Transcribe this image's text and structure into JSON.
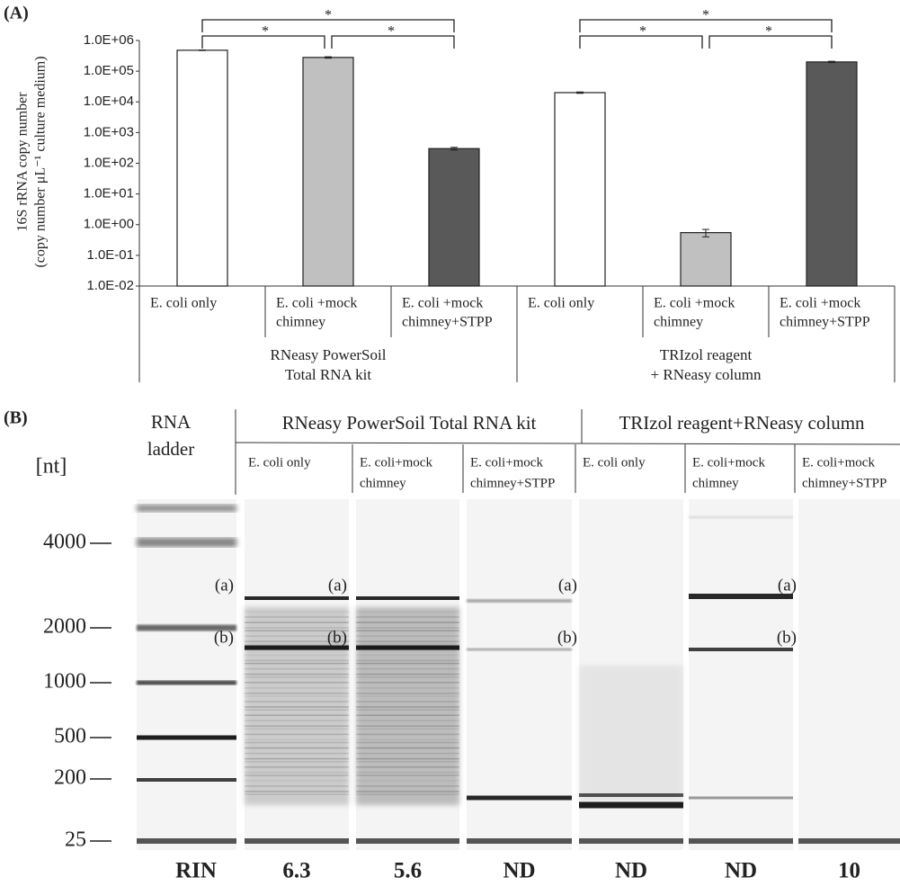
{
  "chart_data": {
    "type": "bar",
    "panel_label": "(A)",
    "y_label": [
      "16S rRNA copy number",
      "(copy number μL⁻¹ culture medium)"
    ],
    "categories": [
      [
        "E. coli only"
      ],
      [
        "E. coli +mock",
        "chimney"
      ],
      [
        "E. coli +mock",
        "chimney+STPP"
      ],
      [
        "E. coli only"
      ],
      [
        "E. coli +mock",
        "chimney"
      ],
      [
        "E. coli +mock",
        "chimney+STPP"
      ]
    ],
    "group_labels": [
      [
        "RNeasy PowerSoil",
        "Total RNA kit"
      ],
      [
        "TRIzol reagent",
        "+ RNeasy column"
      ]
    ],
    "values": [
      480000,
      280000,
      300,
      20000,
      0.55,
      200000
    ],
    "errors": [
      10000,
      15000,
      30,
      1000,
      0.15,
      10000
    ],
    "colors": [
      "#ffffff",
      "#c0c0c0",
      "#595959",
      "#ffffff",
      "#c0c0c0",
      "#595959"
    ],
    "log_scale": true,
    "ylim": [
      0.01,
      1000000
    ],
    "yticks": [
      {
        "value": 0.01,
        "label": "1.0E-02"
      },
      {
        "value": 0.1,
        "label": "1.0E-01"
      },
      {
        "value": 1,
        "label": "1.0E+00"
      },
      {
        "value": 10,
        "label": "1.0E+01"
      },
      {
        "value": 100,
        "label": "1.0E+02"
      },
      {
        "value": 1000,
        "label": "1.0E+03"
      },
      {
        "value": 10000,
        "label": "1.0E+04"
      },
      {
        "value": 100000,
        "label": "1.0E+05"
      },
      {
        "value": 1000000,
        "label": "1.0E+06"
      }
    ],
    "significance": [
      {
        "from": 0,
        "to": 1,
        "label": "*"
      },
      {
        "from": 1,
        "to": 2,
        "label": "*"
      },
      {
        "from": 0,
        "to": 2,
        "label": "*"
      },
      {
        "from": 3,
        "to": 4,
        "label": "*"
      },
      {
        "from": 4,
        "to": 5,
        "label": "*"
      },
      {
        "from": 3,
        "to": 5,
        "label": "*"
      }
    ]
  },
  "gel": {
    "panel_label": "(B)",
    "ladder_label": [
      "RNA",
      "ladder"
    ],
    "unit_label": "[nt]",
    "size_markers": [
      "4000",
      "2000",
      "1000",
      "500",
      "200",
      "25"
    ],
    "groups": [
      "RNeasy PowerSoil Total RNA kit",
      "TRIzol reagent+RNeasy column"
    ],
    "lanes": [
      [
        "E. coli only"
      ],
      [
        "E. coli+mock",
        "chimney"
      ],
      [
        "E. coli+mock",
        "chimney+STPP"
      ],
      [
        "E. coli only"
      ],
      [
        "E. coli+mock",
        "chimney"
      ],
      [
        "E. coli+mock",
        "chimney+STPP"
      ]
    ],
    "band_labels": [
      "(a)",
      "(b)"
    ],
    "rin_label": "RIN",
    "rin": [
      "6.3",
      "5.6",
      "ND",
      "ND",
      "ND",
      "10"
    ]
  }
}
